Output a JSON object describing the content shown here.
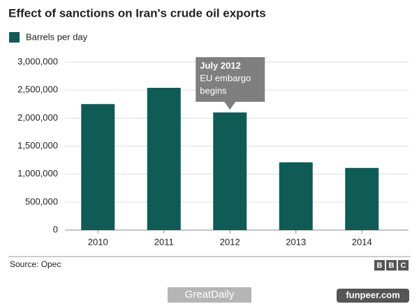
{
  "chart_data": {
    "type": "bar",
    "title": "Effect of sanctions on Iran's crude oil exports",
    "legend": "Barrels per day",
    "color": "#0f5b56",
    "categories": [
      "2010",
      "2011",
      "2012",
      "2013",
      "2014"
    ],
    "values": [
      2250000,
      2540000,
      2100000,
      1210000,
      1110000
    ],
    "ylim": [
      0,
      3000000
    ],
    "yticks": [
      0,
      {
        "value": 500000,
        "label": "500,000"
      },
      {
        "value": 1000000,
        "label": "1,000,000"
      },
      {
        "value": 1500000,
        "label": "1,500,000"
      },
      {
        "value": 2000000,
        "label": "2,000,000"
      },
      {
        "value": 2500000,
        "label": "2,500,000"
      },
      {
        "value": 3000000,
        "label": "3,000,000"
      }
    ],
    "grid": true,
    "annotation": {
      "category": 2,
      "lines": [
        "July 2012",
        "EU embargo",
        "begins"
      ]
    },
    "source": "Source: Opec",
    "logo": [
      "B",
      "B",
      "C"
    ],
    "watermarks": [
      "GreatDaily",
      "funpeer.com"
    ]
  }
}
